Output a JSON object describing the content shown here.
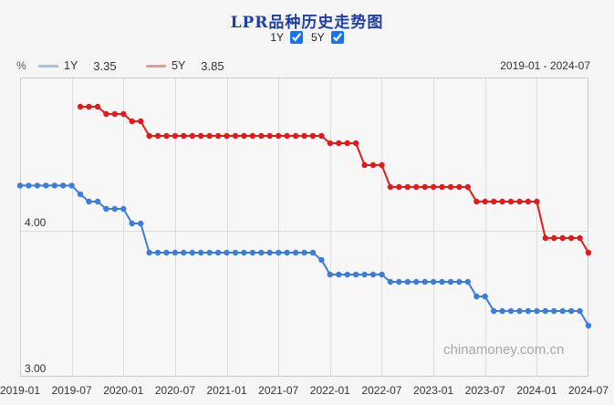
{
  "header": {
    "title": "LPR品种历史走势图",
    "filters": [
      {
        "label": "1Y",
        "checked": true
      },
      {
        "label": "5Y",
        "checked": true
      }
    ],
    "date_range": "2019-01 - 2024-07"
  },
  "legend": {
    "unit": "%"
  },
  "watermark": "chinamoney.com.cn",
  "chart_data": {
    "type": "line",
    "title": "LPR品种历史走势图",
    "xlabel": "",
    "ylabel": "%",
    "ylim": [
      3.0,
      5.05
    ],
    "grid": "partial",
    "legend_position": "top-left",
    "plot_bg": "#f7f7f7",
    "border_color": "#cccccc",
    "grid_color": "#dddddd",
    "x_ticks": [
      "2019-01",
      "2019-07",
      "2020-01",
      "2020-07",
      "2021-01",
      "2021-07",
      "2022-01",
      "2022-07",
      "2023-01",
      "2023-07",
      "2024-01",
      "2024-07"
    ],
    "y_ticks": [
      {
        "label": "4.00",
        "value": 4.0
      },
      {
        "label": "3.00",
        "value": 3.0
      }
    ],
    "months": [
      "2019-01",
      "2019-02",
      "2019-03",
      "2019-04",
      "2019-05",
      "2019-06",
      "2019-07",
      "2019-08",
      "2019-09",
      "2019-10",
      "2019-11",
      "2019-12",
      "2020-01",
      "2020-02",
      "2020-03",
      "2020-04",
      "2020-05",
      "2020-06",
      "2020-07",
      "2020-08",
      "2020-09",
      "2020-10",
      "2020-11",
      "2020-12",
      "2021-01",
      "2021-02",
      "2021-03",
      "2021-04",
      "2021-05",
      "2021-06",
      "2021-07",
      "2021-08",
      "2021-09",
      "2021-10",
      "2021-11",
      "2021-12",
      "2022-01",
      "2022-02",
      "2022-03",
      "2022-04",
      "2022-05",
      "2022-06",
      "2022-07",
      "2022-08",
      "2022-09",
      "2022-10",
      "2022-11",
      "2022-12",
      "2023-01",
      "2023-02",
      "2023-03",
      "2023-04",
      "2023-05",
      "2023-06",
      "2023-07",
      "2023-08",
      "2023-09",
      "2023-10",
      "2023-11",
      "2023-12",
      "2024-01",
      "2024-02",
      "2024-03",
      "2024-04",
      "2024-05",
      "2024-06",
      "2024-07"
    ],
    "series": [
      {
        "name": "1Y",
        "current": "3.35",
        "color": "#3c7dd9",
        "legend_color": "#a5c3e6",
        "values": [
          4.31,
          4.31,
          4.31,
          4.31,
          4.31,
          4.31,
          4.31,
          4.25,
          4.2,
          4.2,
          4.15,
          4.15,
          4.15,
          4.05,
          4.05,
          3.85,
          3.85,
          3.85,
          3.85,
          3.85,
          3.85,
          3.85,
          3.85,
          3.85,
          3.85,
          3.85,
          3.85,
          3.85,
          3.85,
          3.85,
          3.85,
          3.85,
          3.85,
          3.85,
          3.85,
          3.8,
          3.7,
          3.7,
          3.7,
          3.7,
          3.7,
          3.7,
          3.7,
          3.65,
          3.65,
          3.65,
          3.65,
          3.65,
          3.65,
          3.65,
          3.65,
          3.65,
          3.65,
          3.55,
          3.55,
          3.45,
          3.45,
          3.45,
          3.45,
          3.45,
          3.45,
          3.45,
          3.45,
          3.45,
          3.45,
          3.45,
          3.35
        ]
      },
      {
        "name": "5Y",
        "current": "3.85",
        "color": "#e11b1b",
        "legend_color": "#e49a96",
        "values": [
          null,
          null,
          null,
          null,
          null,
          null,
          null,
          4.85,
          4.85,
          4.85,
          4.8,
          4.8,
          4.8,
          4.75,
          4.75,
          4.65,
          4.65,
          4.65,
          4.65,
          4.65,
          4.65,
          4.65,
          4.65,
          4.65,
          4.65,
          4.65,
          4.65,
          4.65,
          4.65,
          4.65,
          4.65,
          4.65,
          4.65,
          4.65,
          4.65,
          4.65,
          4.6,
          4.6,
          4.6,
          4.6,
          4.45,
          4.45,
          4.45,
          4.3,
          4.3,
          4.3,
          4.3,
          4.3,
          4.3,
          4.3,
          4.3,
          4.3,
          4.3,
          4.2,
          4.2,
          4.2,
          4.2,
          4.2,
          4.2,
          4.2,
          4.2,
          3.95,
          3.95,
          3.95,
          3.95,
          3.95,
          3.85
        ]
      }
    ]
  }
}
